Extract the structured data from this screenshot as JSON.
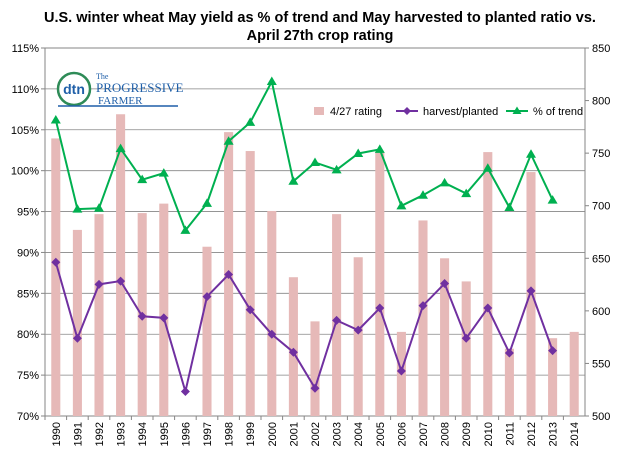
{
  "chart_data": {
    "type": "bar",
    "title": "U.S. winter wheat May yield as %  of trend and May harvested to planted ratio vs.",
    "subtitle": "April 27th crop rating",
    "logo": {
      "mark": "dtn",
      "line1": "The",
      "line2": "PROGRESSIVE",
      "line3": "FARMER"
    },
    "categories": [
      "1990",
      "1991",
      "1992",
      "1993",
      "1994",
      "1995",
      "1996",
      "1997",
      "1998",
      "1999",
      "2000",
      "2001",
      "2002",
      "2003",
      "2004",
      "2005",
      "2006",
      "2007",
      "2008",
      "2009",
      "2010",
      "2011",
      "2012",
      "2013",
      "2014"
    ],
    "left_axis": {
      "ticks": [
        "70%",
        "75%",
        "80%",
        "85%",
        "90%",
        "95%",
        "100%",
        "105%",
        "110%",
        "115%"
      ],
      "ylim": [
        0.7,
        1.15
      ]
    },
    "right_axis": {
      "ticks": [
        "500",
        "550",
        "600",
        "650",
        "700",
        "750",
        "800",
        "850"
      ],
      "ylim": [
        500,
        850
      ]
    },
    "series": [
      {
        "name": "4/27 rating",
        "kind": "bar",
        "axis": "right",
        "color": "#e6b9b8",
        "values": [
          764,
          677,
          692,
          787,
          693,
          702,
          null,
          661,
          770,
          752,
          695,
          632,
          590,
          692,
          651,
          751,
          580,
          686,
          650,
          628,
          751,
          564,
          732,
          574,
          580
        ]
      },
      {
        "name": "harvest/planted",
        "kind": "line",
        "axis": "left",
        "color": "#7030a0",
        "marker": "diamond",
        "values": [
          0.888,
          0.795,
          0.861,
          0.865,
          0.822,
          0.82,
          0.73,
          0.846,
          0.873,
          0.83,
          0.8,
          0.778,
          0.734,
          0.817,
          0.805,
          0.832,
          0.755,
          0.835,
          0.862,
          0.795,
          0.832,
          0.777,
          0.853,
          0.78,
          null
        ]
      },
      {
        "name": "% of trend",
        "kind": "line",
        "axis": "left",
        "color": "#00b050",
        "marker": "triangle",
        "values": [
          1.062,
          0.953,
          0.954,
          1.027,
          0.989,
          0.997,
          0.927,
          0.96,
          1.036,
          1.059,
          1.109,
          0.987,
          1.01,
          1.001,
          1.021,
          1.026,
          0.957,
          0.97,
          0.985,
          0.972,
          1.003,
          0.955,
          1.02,
          0.964,
          null
        ]
      }
    ],
    "legend": {
      "placement": "top-right",
      "labels": [
        "4/27 rating",
        "harvest/planted",
        "% of trend"
      ]
    },
    "grid": {
      "horizontal": true,
      "vertical": false
    }
  }
}
